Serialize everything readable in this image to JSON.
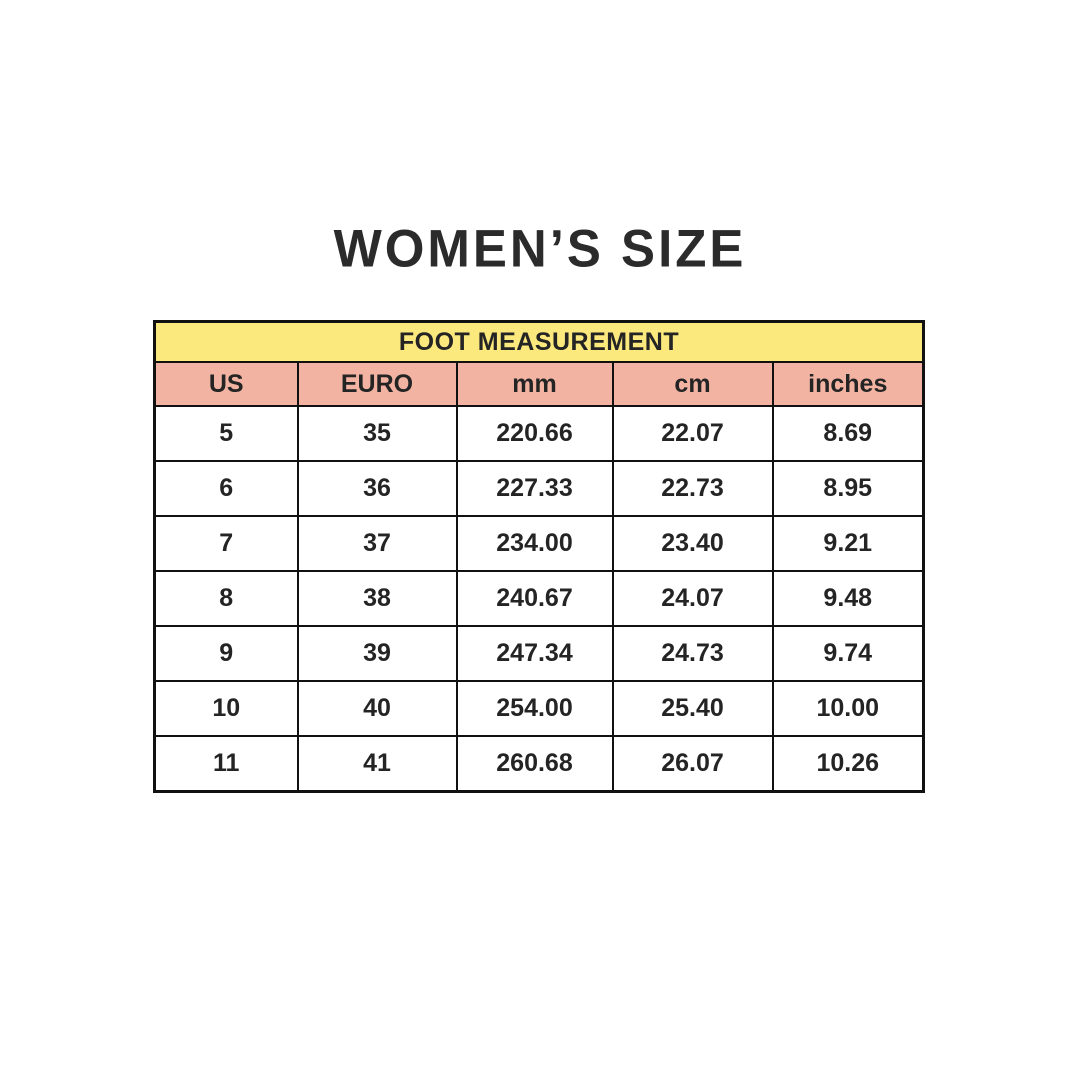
{
  "page": {
    "title": "WOMEN’S SIZE",
    "background": "#ffffff"
  },
  "table": {
    "group_header": "FOOT MEASUREMENT",
    "columns": [
      "US",
      "EURO",
      "mm",
      "cm",
      "inches"
    ],
    "rows": [
      [
        "5",
        "35",
        "220.66",
        "22.07",
        "8.69"
      ],
      [
        "6",
        "36",
        "227.33",
        "22.73",
        "8.95"
      ],
      [
        "7",
        "37",
        "234.00",
        "23.40",
        "9.21"
      ],
      [
        "8",
        "38",
        "240.67",
        "24.07",
        "9.48"
      ],
      [
        "9",
        "39",
        "247.34",
        "24.73",
        "9.74"
      ],
      [
        "10",
        "40",
        "254.00",
        "25.40",
        "10.00"
      ],
      [
        "11",
        "41",
        "260.68",
        "26.07",
        "10.26"
      ]
    ],
    "colors": {
      "group_header_bg": "#FBE97E",
      "column_header_bg": "#F2B3A2",
      "border": "#111111",
      "text": "#242424"
    }
  },
  "chart_data": {
    "type": "table",
    "title": "WOMEN’S SIZE",
    "group_header": "FOOT MEASUREMENT",
    "columns": [
      "US",
      "EURO",
      "mm",
      "cm",
      "inches"
    ],
    "rows": [
      [
        5,
        35,
        220.66,
        22.07,
        8.69
      ],
      [
        6,
        36,
        227.33,
        22.73,
        8.95
      ],
      [
        7,
        37,
        234.0,
        23.4,
        9.21
      ],
      [
        8,
        38,
        240.67,
        24.07,
        9.48
      ],
      [
        9,
        39,
        247.34,
        24.73,
        9.74
      ],
      [
        10,
        40,
        254.0,
        25.4,
        10.0
      ],
      [
        11,
        41,
        260.68,
        26.07,
        10.26
      ]
    ]
  }
}
